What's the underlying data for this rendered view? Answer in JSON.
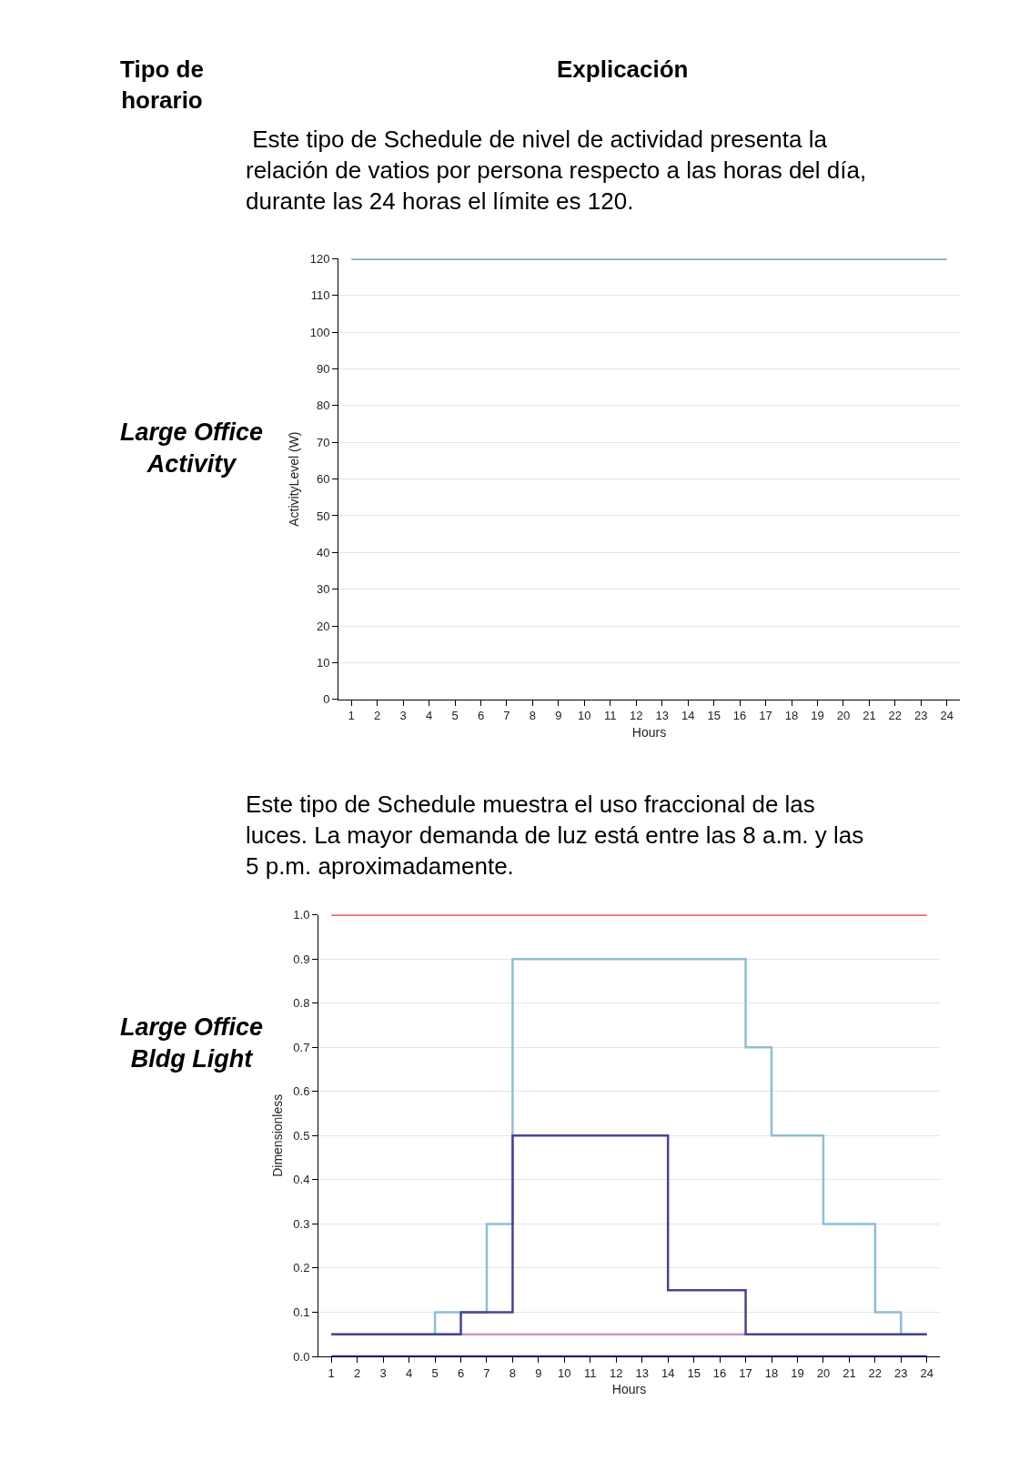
{
  "chart_data": [
    {
      "type": "step",
      "title": "Large Office\nActivity",
      "subtitle": " Este tipo de Schedule de nivel de actividad presenta la\nrelación de vatios por persona respecto a las horas del día,\ndurante las 24 horas el límite es 120.",
      "xlabel": "Hours",
      "ylabel": "ActivityLevel (W)",
      "annotations": [
        "Tipo de\nhorario",
        "Explicación"
      ],
      "x": [
        1,
        2,
        3,
        4,
        5,
        6,
        7,
        8,
        9,
        10,
        11,
        12,
        13,
        14,
        15,
        16,
        17,
        18,
        19,
        20,
        21,
        22,
        23,
        24
      ],
      "series": [
        {
          "color": "#5b84c4",
          "values": [
            120,
            120,
            120,
            120,
            120,
            120,
            120,
            120,
            120,
            120,
            120,
            120,
            120,
            120,
            120,
            120,
            120,
            120,
            120,
            120,
            120,
            120,
            120,
            120
          ]
        }
      ],
      "xlim": [
        0.5,
        24.5
      ],
      "ylim": [
        0,
        120
      ],
      "xticks": [
        1,
        2,
        3,
        4,
        5,
        6,
        7,
        8,
        9,
        10,
        11,
        12,
        13,
        14,
        15,
        16,
        17,
        18,
        19,
        20,
        21,
        22,
        23,
        24
      ],
      "yticks": [
        0,
        10,
        20,
        30,
        40,
        50,
        60,
        70,
        80,
        90,
        100,
        110,
        120
      ],
      "grid": "y",
      "marker": "none",
      "line_style": "solid"
    },
    {
      "type": "step",
      "title": "Large Office\nBldg Light",
      "subtitle": "Este tipo de Schedule muestra el uso fraccional de las\nluces. La mayor demanda de luz está entre las 8 a.m. y las\n5 p.m. aproximadamente.",
      "xlabel": "Hours",
      "ylabel": "Dimensionless",
      "x": [
        1,
        2,
        3,
        4,
        5,
        6,
        7,
        8,
        9,
        10,
        11,
        12,
        13,
        14,
        15,
        16,
        17,
        18,
        19,
        20,
        21,
        22,
        23,
        24
      ],
      "series": [
        {
          "color": "#e03838",
          "values": [
            1,
            1,
            1,
            1,
            1,
            1,
            1,
            1,
            1,
            1,
            1,
            1,
            1,
            1,
            1,
            1,
            1,
            1,
            1,
            1,
            1,
            1,
            1,
            1
          ]
        },
        {
          "color": "#c898c8",
          "values": [
            null,
            null,
            null,
            null,
            0.05,
            0.05,
            0.05,
            0.05,
            0.05,
            0.05,
            0.05,
            0.05,
            0.05,
            0.05,
            0.05,
            0.05,
            0.05,
            null,
            null,
            null,
            null,
            null,
            null,
            null
          ]
        },
        {
          "color": "#2a2ad0",
          "values": [
            0,
            0,
            0,
            0,
            0,
            0,
            0,
            0,
            0,
            0,
            0,
            0,
            0,
            0,
            0,
            0,
            0,
            0,
            0,
            0,
            0,
            0,
            0,
            0
          ]
        },
        {
          "color": "#8fbdd6",
          "values": [
            0.05,
            0.05,
            0.05,
            0.05,
            0.1,
            0.1,
            0.3,
            0.9,
            0.9,
            0.9,
            0.9,
            0.9,
            0.9,
            0.9,
            0.9,
            0.9,
            0.7,
            0.5,
            0.5,
            0.3,
            0.3,
            0.1,
            0.05,
            0.05
          ]
        },
        {
          "color": "#4c4390",
          "values": [
            0.05,
            0.05,
            0.05,
            0.05,
            0.05,
            0.1,
            0.1,
            0.5,
            0.5,
            0.5,
            0.5,
            0.5,
            0.5,
            0.15,
            0.15,
            0.15,
            0.05,
            0.05,
            0.05,
            0.05,
            0.05,
            0.05,
            0.05,
            0.05
          ]
        }
      ],
      "xlim": [
        0.5,
        24.5
      ],
      "ylim": [
        0,
        1
      ],
      "xticks": [
        1,
        2,
        3,
        4,
        5,
        6,
        7,
        8,
        9,
        10,
        11,
        12,
        13,
        14,
        15,
        16,
        17,
        18,
        19,
        20,
        21,
        22,
        23,
        24
      ],
      "yticks": [
        {
          "value": 0,
          "label": "0.0"
        },
        {
          "value": 0.1,
          "label": "0.1"
        },
        {
          "value": 0.2,
          "label": "0.2"
        },
        {
          "value": 0.3,
          "label": "0.3"
        },
        {
          "value": 0.4,
          "label": "0.4"
        },
        {
          "value": 0.5,
          "label": "0.5"
        },
        {
          "value": 0.6,
          "label": "0.6"
        },
        {
          "value": 0.7,
          "label": "0.7"
        },
        {
          "value": 0.8,
          "label": "0.8"
        },
        {
          "value": 0.9,
          "label": "0.9"
        },
        {
          "value": 1,
          "label": "1.0"
        }
      ],
      "grid": "y",
      "marker": "none",
      "line_style": "solid"
    }
  ]
}
